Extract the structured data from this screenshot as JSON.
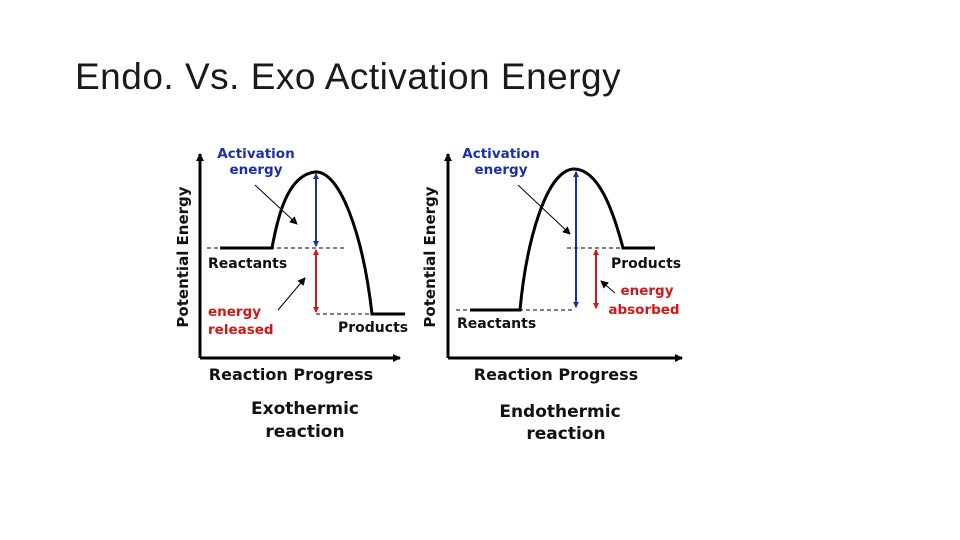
{
  "slide": {
    "title": "Endo. Vs. Exo Activation Energy"
  },
  "colors": {
    "activation": "#1c2fa8",
    "energy_change": "#d01818",
    "curve": "#000000"
  },
  "exothermic": {
    "y_axis_label": "Potential Energy",
    "x_axis_label": "Reaction Progress",
    "activation_label_1": "Activation",
    "activation_label_2": "energy",
    "reactants_label": "Reactants",
    "products_label": "Products",
    "change_label_1": "energy",
    "change_label_2": "released",
    "caption_1": "Exothermic",
    "caption_2": "reaction"
  },
  "endothermic": {
    "y_axis_label": "Potential Energy",
    "x_axis_label": "Reaction Progress",
    "activation_label_1": "Activation",
    "activation_label_2": "energy",
    "reactants_label": "Reactants",
    "products_label": "Products",
    "change_label_1": "energy",
    "change_label_2": "absorbed",
    "caption_1": "Endothermic",
    "caption_2": "reaction"
  }
}
